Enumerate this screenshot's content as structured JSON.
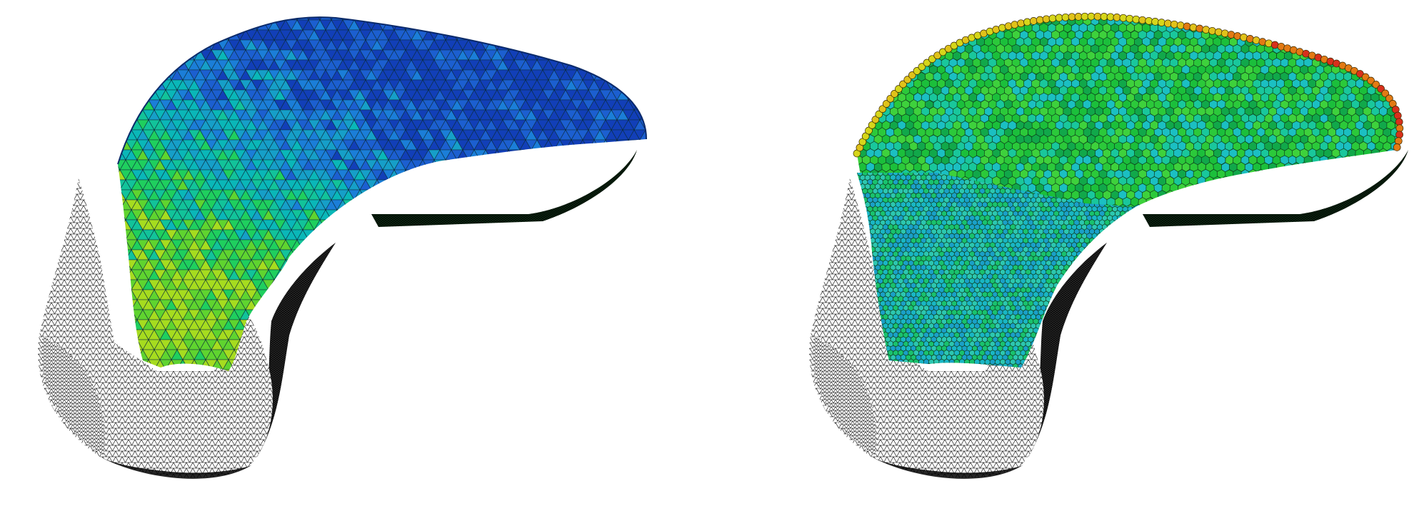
{
  "figure": {
    "panels": [
      {
        "id": "left",
        "mesh": "tetrahedral",
        "cut_palette": [
          "#123fb8",
          "#1c5fd0",
          "#1b7ed8",
          "#169fc8",
          "#0ab7b8",
          "#12c39a",
          "#1fcf5e",
          "#5fd42f",
          "#a6dc1f"
        ],
        "skin_color": "#ffffff",
        "wire_color": "#000000"
      },
      {
        "id": "right",
        "mesh": "polyhedral",
        "cut_palette": [
          "#11a84a",
          "#1bbf3b",
          "#2bc93a",
          "#3ed13c",
          "#19c79c",
          "#1bbfc2"
        ],
        "border_palette": [
          "#d6d61a",
          "#e0c21a",
          "#e27a14",
          "#d8301c"
        ],
        "lower_palette": [
          "#19b6c4",
          "#1aa0c8",
          "#2cc7b0",
          "#19c26e"
        ],
        "skin_color": "#ffffff",
        "wire_color": "#000000"
      }
    ]
  }
}
